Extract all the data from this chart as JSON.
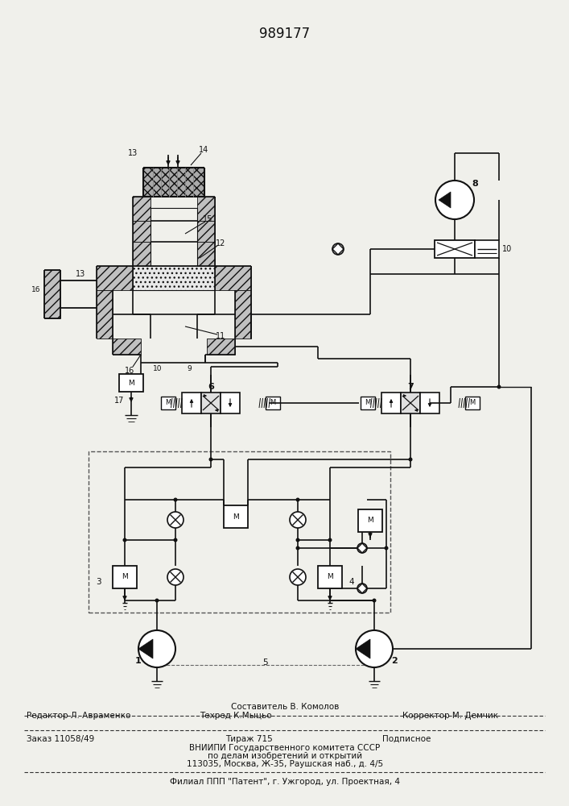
{
  "patent_number": "989177",
  "bg": "#f0f0eb",
  "lc": "#111111",
  "footer_composer": "Составитель В. Комолов",
  "footer_editor": "Редактор Л. Авраменко",
  "footer_techred": "Техред К.Мыцьо",
  "footer_corrector": "Корректор М. Демчик",
  "footer_order": "Заказ 11058/49",
  "footer_circ": "Тираж 715",
  "footer_sub": "Подписное",
  "footer_org1": "ВНИИПИ Государственного комитета СССР",
  "footer_org2": "по делам изобретений и открытий",
  "footer_org3": "113035, Москва, Ж-35, Раушская наб., д. 4/5",
  "footer_branch": "Филиал ППП \"Патент\", г. Ужгород, ул. Проектная, 4"
}
